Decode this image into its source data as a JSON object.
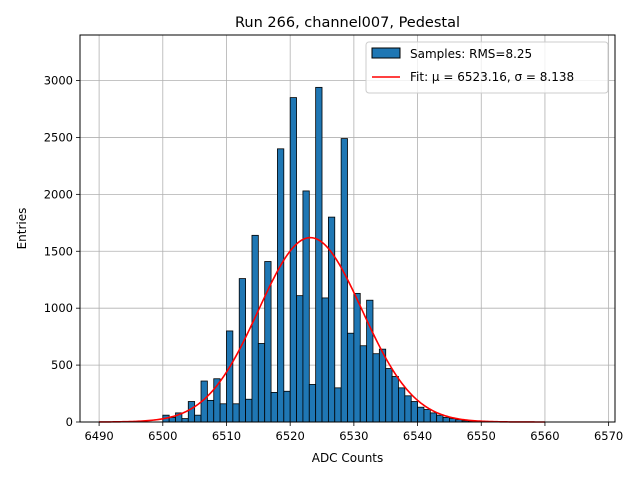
{
  "chart_data": {
    "type": "bar",
    "title": "Run 266, channel007, Pedestal",
    "xlabel": "ADC Counts",
    "ylabel": "Entries",
    "xlim": [
      6487,
      6571
    ],
    "ylim": [
      0,
      3400
    ],
    "xticks": [
      "6490",
      "6500",
      "6510",
      "6520",
      "6530",
      "6540",
      "6550",
      "6560",
      "6570"
    ],
    "yticks": [
      "0",
      "500",
      "1000",
      "1500",
      "2000",
      "2500",
      "3000"
    ],
    "grid": true,
    "legend_position": "top-right",
    "legend": {
      "samples": "Samples: RMS=8.25",
      "fit": "Fit: μ = 6523.16, σ = 8.138"
    },
    "colors": {
      "bar": "#1f77b4",
      "fit": "#ff0000",
      "grid": "#b0b0b0"
    },
    "bin_width": 1,
    "bins": [
      6500,
      6501,
      6502,
      6503,
      6504,
      6505,
      6506,
      6507,
      6508,
      6509,
      6510,
      6511,
      6512,
      6513,
      6514,
      6515,
      6516,
      6517,
      6518,
      6519,
      6520,
      6521,
      6522,
      6523,
      6524,
      6525,
      6526,
      6527,
      6528,
      6529,
      6530,
      6531,
      6532,
      6533,
      6534,
      6535,
      6536,
      6537,
      6538,
      6539,
      6540,
      6541,
      6542,
      6543,
      6544,
      6545,
      6546,
      6547,
      6548,
      6549
    ],
    "counts": [
      60,
      40,
      80,
      30,
      180,
      60,
      360,
      190,
      380,
      160,
      800,
      160,
      1260,
      200,
      1640,
      690,
      1410,
      260,
      2400,
      270,
      2850,
      1110,
      2030,
      330,
      2940,
      1090,
      1800,
      300,
      2490,
      780,
      1130,
      670,
      1070,
      600,
      640,
      470,
      400,
      300,
      230,
      180,
      130,
      110,
      80,
      60,
      40,
      30,
      20,
      10,
      5,
      3
    ],
    "fit": {
      "mu": 6523.16,
      "sigma": 8.138,
      "amplitude": 1620,
      "x_range": [
        6490,
        6560
      ]
    }
  }
}
